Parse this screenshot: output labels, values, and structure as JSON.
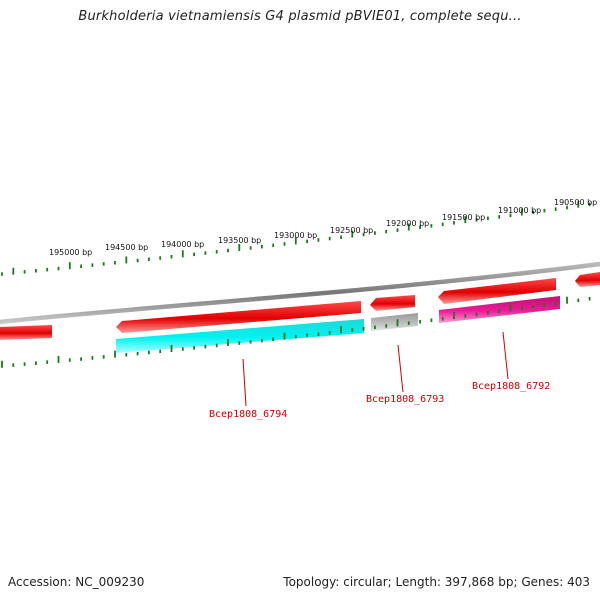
{
  "header": {
    "title": "Burkholderia vietnamiensis G4 plasmid pBVIE01, complete sequ..."
  },
  "footer": {
    "accession": "Accession: NC_009230",
    "summary": "Topology: circular; Length: 397,868 bp; Genes: 403"
  },
  "scale": {
    "labels": [
      "195000 bp",
      "194500 bp",
      "194000 bp",
      "193500 bp",
      "193000 bp",
      "192500 bp",
      "192000 bp",
      "191500 bp",
      "191000 bp",
      "190500 bp"
    ]
  },
  "genes": {
    "bcep1808_6794": "Bcep1808_6794",
    "bcep1808_6793": "Bcep1808_6793",
    "bcep1808_6792": "Bcep1808_6792"
  },
  "colors": {
    "backbone": "#8a8a8a",
    "forward_feature": "#ee0000",
    "cds_6794": "#00eef0",
    "cds_6793": "#b0b0b0",
    "cds_6792": "#e0108f",
    "tick": "#1a7a1a",
    "label_line": "#cc0000"
  }
}
